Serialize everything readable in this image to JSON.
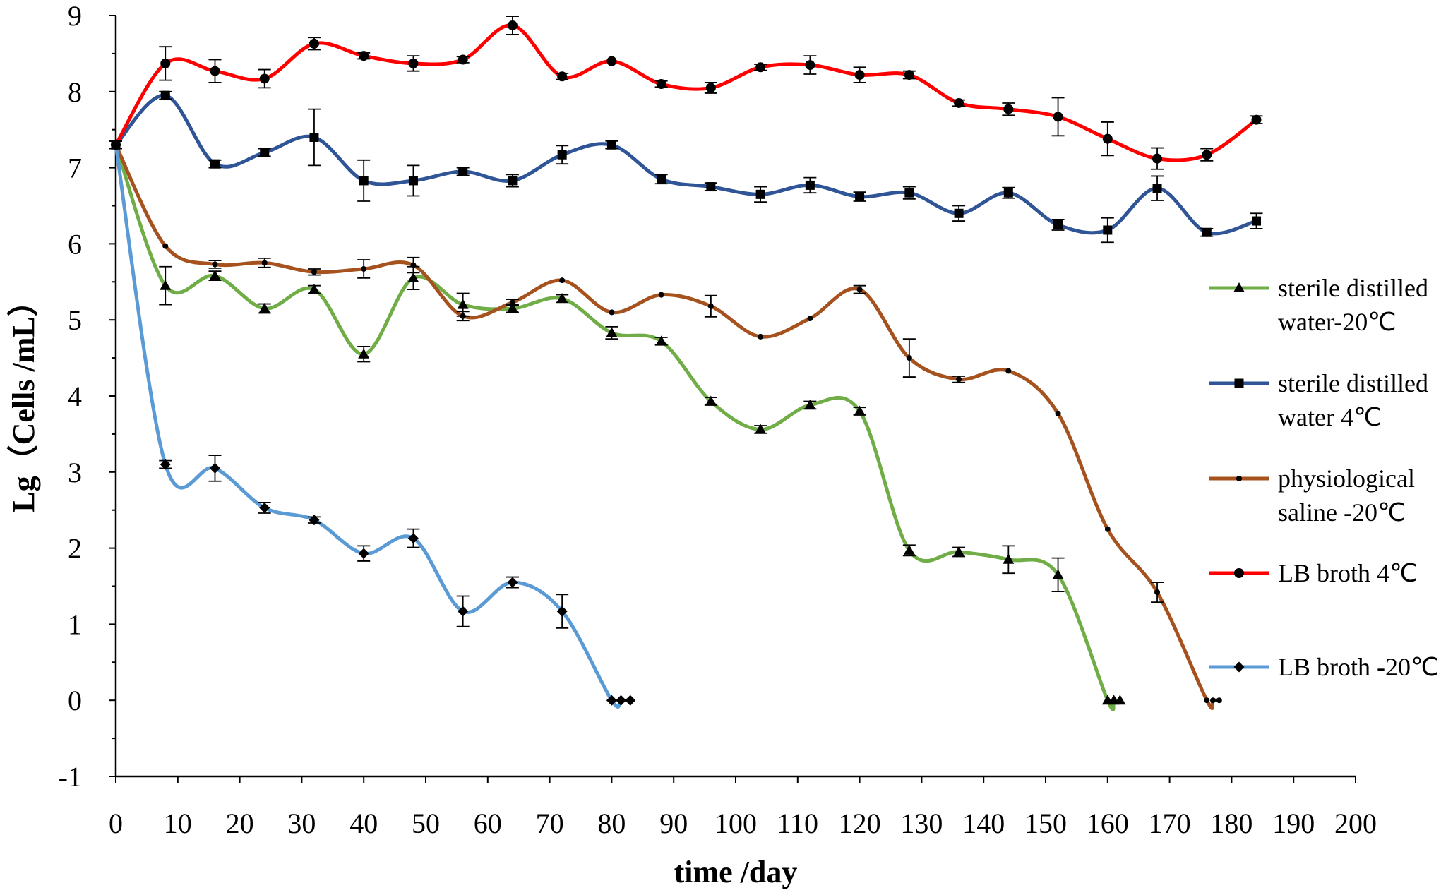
{
  "chart_data": {
    "type": "line",
    "title": "",
    "xlabel": "time /day",
    "ylabel": "Lg（Cells /mL）",
    "xlim": [
      0,
      200
    ],
    "ylim": [
      -1,
      9
    ],
    "x_ticks": [
      "0",
      "10",
      "20",
      "30",
      "40",
      "50",
      "60",
      "70",
      "80",
      "90",
      "100",
      "110",
      "120",
      "130",
      "140",
      "150",
      "160",
      "170",
      "180",
      "190",
      "200"
    ],
    "y_ticks": [
      "-1",
      "0",
      "1",
      "2",
      "3",
      "4",
      "5",
      "6",
      "7",
      "8",
      "9"
    ],
    "grid": false,
    "legend_position": "right",
    "series": [
      {
        "name": "sterile distilled water-20℃",
        "legend_lines": [
          "sterile distilled",
          "water-20℃"
        ],
        "color": "#70ad47",
        "marker": "triangle",
        "points": [
          {
            "x": 0,
            "y": 7.3,
            "err": 0.05
          },
          {
            "x": 8,
            "y": 5.45,
            "err": 0.25
          },
          {
            "x": 16,
            "y": 5.58,
            "err": 0.06
          },
          {
            "x": 24,
            "y": 5.15,
            "err": 0.06
          },
          {
            "x": 32,
            "y": 5.4,
            "err": 0.05
          },
          {
            "x": 40,
            "y": 4.55,
            "err": 0.1
          },
          {
            "x": 48,
            "y": 5.55,
            "err": 0.15
          },
          {
            "x": 56,
            "y": 5.2,
            "err": 0.15
          },
          {
            "x": 64,
            "y": 5.15,
            "err": 0.05
          },
          {
            "x": 72,
            "y": 5.28,
            "err": 0.05
          },
          {
            "x": 80,
            "y": 4.83,
            "err": 0.08
          },
          {
            "x": 88,
            "y": 4.72,
            "err": 0.05
          },
          {
            "x": 96,
            "y": 3.93,
            "err": 0.05
          },
          {
            "x": 104,
            "y": 3.56,
            "err": 0.05
          },
          {
            "x": 112,
            "y": 3.88,
            "err": 0.05
          },
          {
            "x": 120,
            "y": 3.8,
            "err": 0.05
          },
          {
            "x": 128,
            "y": 1.97,
            "err": 0.07
          },
          {
            "x": 136,
            "y": 1.95,
            "err": 0.06
          },
          {
            "x": 144,
            "y": 1.85,
            "err": 0.18
          },
          {
            "x": 152,
            "y": 1.65,
            "err": 0.22
          },
          {
            "x": 160,
            "y": 0,
            "err": 0
          },
          {
            "x": 161,
            "y": 0,
            "err": 0
          },
          {
            "x": 162,
            "y": 0,
            "err": 0
          }
        ]
      },
      {
        "name": "sterile distilled water 4℃",
        "legend_lines": [
          "sterile distilled",
          "water 4℃"
        ],
        "color": "#2f5597",
        "marker": "square",
        "points": [
          {
            "x": 0,
            "y": 7.3,
            "err": 0.05
          },
          {
            "x": 8,
            "y": 7.95,
            "err": 0.05
          },
          {
            "x": 16,
            "y": 7.05,
            "err": 0.05
          },
          {
            "x": 24,
            "y": 7.2,
            "err": 0.05
          },
          {
            "x": 32,
            "y": 7.4,
            "err": 0.37
          },
          {
            "x": 40,
            "y": 6.83,
            "err": 0.27
          },
          {
            "x": 48,
            "y": 6.83,
            "err": 0.2
          },
          {
            "x": 56,
            "y": 6.95,
            "err": 0.05
          },
          {
            "x": 64,
            "y": 6.83,
            "err": 0.08
          },
          {
            "x": 72,
            "y": 7.17,
            "err": 0.12
          },
          {
            "x": 80,
            "y": 7.3,
            "err": 0.05
          },
          {
            "x": 88,
            "y": 6.85,
            "err": 0.06
          },
          {
            "x": 96,
            "y": 6.75,
            "err": 0.05
          },
          {
            "x": 104,
            "y": 6.65,
            "err": 0.1
          },
          {
            "x": 112,
            "y": 6.77,
            "err": 0.1
          },
          {
            "x": 120,
            "y": 6.62,
            "err": 0.06
          },
          {
            "x": 128,
            "y": 6.67,
            "err": 0.08
          },
          {
            "x": 136,
            "y": 6.4,
            "err": 0.1
          },
          {
            "x": 144,
            "y": 6.67,
            "err": 0.07
          },
          {
            "x": 152,
            "y": 6.25,
            "err": 0.07
          },
          {
            "x": 160,
            "y": 6.18,
            "err": 0.16
          },
          {
            "x": 168,
            "y": 6.73,
            "err": 0.16
          },
          {
            "x": 176,
            "y": 6.15,
            "err": 0.05
          },
          {
            "x": 184,
            "y": 6.3,
            "err": 0.1
          }
        ]
      },
      {
        "name": "physiological saline -20℃",
        "legend_lines": [
          "physiological",
          "saline -20℃"
        ],
        "color": "#a5521e",
        "marker": "dot",
        "points": [
          {
            "x": 0,
            "y": 7.3,
            "err": 0.05
          },
          {
            "x": 8,
            "y": 5.97,
            "err": 0.03
          },
          {
            "x": 16,
            "y": 5.73,
            "err": 0.05
          },
          {
            "x": 24,
            "y": 5.75,
            "err": 0.06
          },
          {
            "x": 32,
            "y": 5.63,
            "err": 0.04
          },
          {
            "x": 40,
            "y": 5.67,
            "err": 0.12
          },
          {
            "x": 48,
            "y": 5.72,
            "err": 0.1
          },
          {
            "x": 56,
            "y": 5.05,
            "err": 0.06
          },
          {
            "x": 64,
            "y": 5.23,
            "err": 0.04
          },
          {
            "x": 72,
            "y": 5.52,
            "err": 0.03
          },
          {
            "x": 80,
            "y": 5.1,
            "err": 0.03
          },
          {
            "x": 88,
            "y": 5.33,
            "err": 0.03
          },
          {
            "x": 96,
            "y": 5.18,
            "err": 0.14
          },
          {
            "x": 104,
            "y": 4.78,
            "err": 0.02
          },
          {
            "x": 112,
            "y": 5.02,
            "err": 0.02
          },
          {
            "x": 120,
            "y": 5.4,
            "err": 0.05
          },
          {
            "x": 128,
            "y": 4.5,
            "err": 0.25
          },
          {
            "x": 136,
            "y": 4.22,
            "err": 0.04
          },
          {
            "x": 144,
            "y": 4.33,
            "err": 0.03
          },
          {
            "x": 152,
            "y": 3.77,
            "err": 0.03
          },
          {
            "x": 160,
            "y": 2.25,
            "err": 0.02
          },
          {
            "x": 168,
            "y": 1.42,
            "err": 0.13
          },
          {
            "x": 176,
            "y": 0,
            "err": 0
          },
          {
            "x": 177,
            "y": 0,
            "err": 0
          },
          {
            "x": 178,
            "y": 0,
            "err": 0
          }
        ]
      },
      {
        "name": "LB broth 4℃",
        "legend_lines": [
          "LB broth 4℃"
        ],
        "color": "#ff0000",
        "marker": "circle",
        "points": [
          {
            "x": 0,
            "y": 7.3,
            "err": 0.05
          },
          {
            "x": 8,
            "y": 8.37,
            "err": 0.22
          },
          {
            "x": 16,
            "y": 8.27,
            "err": 0.15
          },
          {
            "x": 24,
            "y": 8.17,
            "err": 0.12
          },
          {
            "x": 32,
            "y": 8.63,
            "err": 0.08
          },
          {
            "x": 40,
            "y": 8.47,
            "err": 0.04
          },
          {
            "x": 48,
            "y": 8.37,
            "err": 0.1
          },
          {
            "x": 56,
            "y": 8.42,
            "err": 0.04
          },
          {
            "x": 64,
            "y": 8.87,
            "err": 0.12
          },
          {
            "x": 72,
            "y": 8.2,
            "err": 0.04
          },
          {
            "x": 80,
            "y": 8.4,
            "err": 0.03
          },
          {
            "x": 88,
            "y": 8.1,
            "err": 0.04
          },
          {
            "x": 96,
            "y": 8.05,
            "err": 0.07
          },
          {
            "x": 104,
            "y": 8.32,
            "err": 0.04
          },
          {
            "x": 112,
            "y": 8.35,
            "err": 0.12
          },
          {
            "x": 120,
            "y": 8.22,
            "err": 0.1
          },
          {
            "x": 128,
            "y": 8.22,
            "err": 0.05
          },
          {
            "x": 136,
            "y": 7.85,
            "err": 0.04
          },
          {
            "x": 144,
            "y": 7.77,
            "err": 0.08
          },
          {
            "x": 152,
            "y": 7.67,
            "err": 0.25
          },
          {
            "x": 160,
            "y": 7.38,
            "err": 0.22
          },
          {
            "x": 168,
            "y": 7.12,
            "err": 0.14
          },
          {
            "x": 176,
            "y": 7.17,
            "err": 0.08
          },
          {
            "x": 184,
            "y": 7.63,
            "err": 0.05
          }
        ]
      },
      {
        "name": "LB broth -20℃",
        "legend_lines": [
          "LB broth -20℃"
        ],
        "color": "#5b9bd5",
        "marker": "diamond",
        "points": [
          {
            "x": 0,
            "y": 7.3,
            "err": 0.05
          },
          {
            "x": 8,
            "y": 3.1,
            "err": 0.05
          },
          {
            "x": 16,
            "y": 3.05,
            "err": 0.17
          },
          {
            "x": 24,
            "y": 2.53,
            "err": 0.07
          },
          {
            "x": 32,
            "y": 2.37,
            "err": 0.04
          },
          {
            "x": 40,
            "y": 1.93,
            "err": 0.1
          },
          {
            "x": 48,
            "y": 2.13,
            "err": 0.12
          },
          {
            "x": 56,
            "y": 1.17,
            "err": 0.2
          },
          {
            "x": 64,
            "y": 1.55,
            "err": 0.07
          },
          {
            "x": 72,
            "y": 1.17,
            "err": 0.22
          },
          {
            "x": 80,
            "y": 0,
            "err": 0
          },
          {
            "x": 81.5,
            "y": 0,
            "err": 0
          },
          {
            "x": 83,
            "y": 0,
            "err": 0
          }
        ]
      }
    ]
  }
}
